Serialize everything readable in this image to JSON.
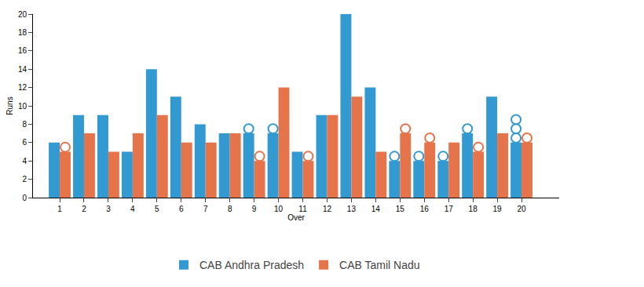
{
  "chart_data": {
    "type": "bar",
    "x_label": "Over",
    "y_label": "Runs",
    "categories": [
      "1",
      "2",
      "3",
      "4",
      "5",
      "6",
      "7",
      "8",
      "9",
      "10",
      "11",
      "12",
      "13",
      "14",
      "15",
      "16",
      "17",
      "18",
      "19",
      "20"
    ],
    "series": [
      {
        "name": "CAB Andhra Pradesh",
        "color": "#3399d1",
        "values": [
          6,
          9,
          9,
          5,
          14,
          11,
          8,
          7,
          7,
          7,
          5,
          9,
          20,
          12,
          4,
          4,
          4,
          7,
          11,
          6
        ],
        "wickets": [
          0,
          0,
          0,
          0,
          0,
          0,
          0,
          0,
          1,
          1,
          0,
          0,
          0,
          0,
          1,
          1,
          1,
          1,
          0,
          3
        ]
      },
      {
        "name": "CAB Tamil Nadu",
        "color": "#e5744a",
        "values": [
          5,
          7,
          5,
          7,
          9,
          6,
          6,
          7,
          4,
          12,
          4,
          9,
          11,
          5,
          7,
          6,
          6,
          5,
          7,
          6
        ],
        "wickets": [
          1,
          0,
          0,
          0,
          0,
          0,
          0,
          0,
          1,
          0,
          1,
          0,
          0,
          0,
          1,
          1,
          0,
          1,
          0,
          1
        ]
      }
    ],
    "ylim": [
      0,
      20
    ],
    "yticks": [
      0,
      2,
      4,
      6,
      8,
      10,
      12,
      14,
      16,
      18,
      20
    ],
    "grid": false,
    "legend": "bottom",
    "marker": "circle-open"
  }
}
